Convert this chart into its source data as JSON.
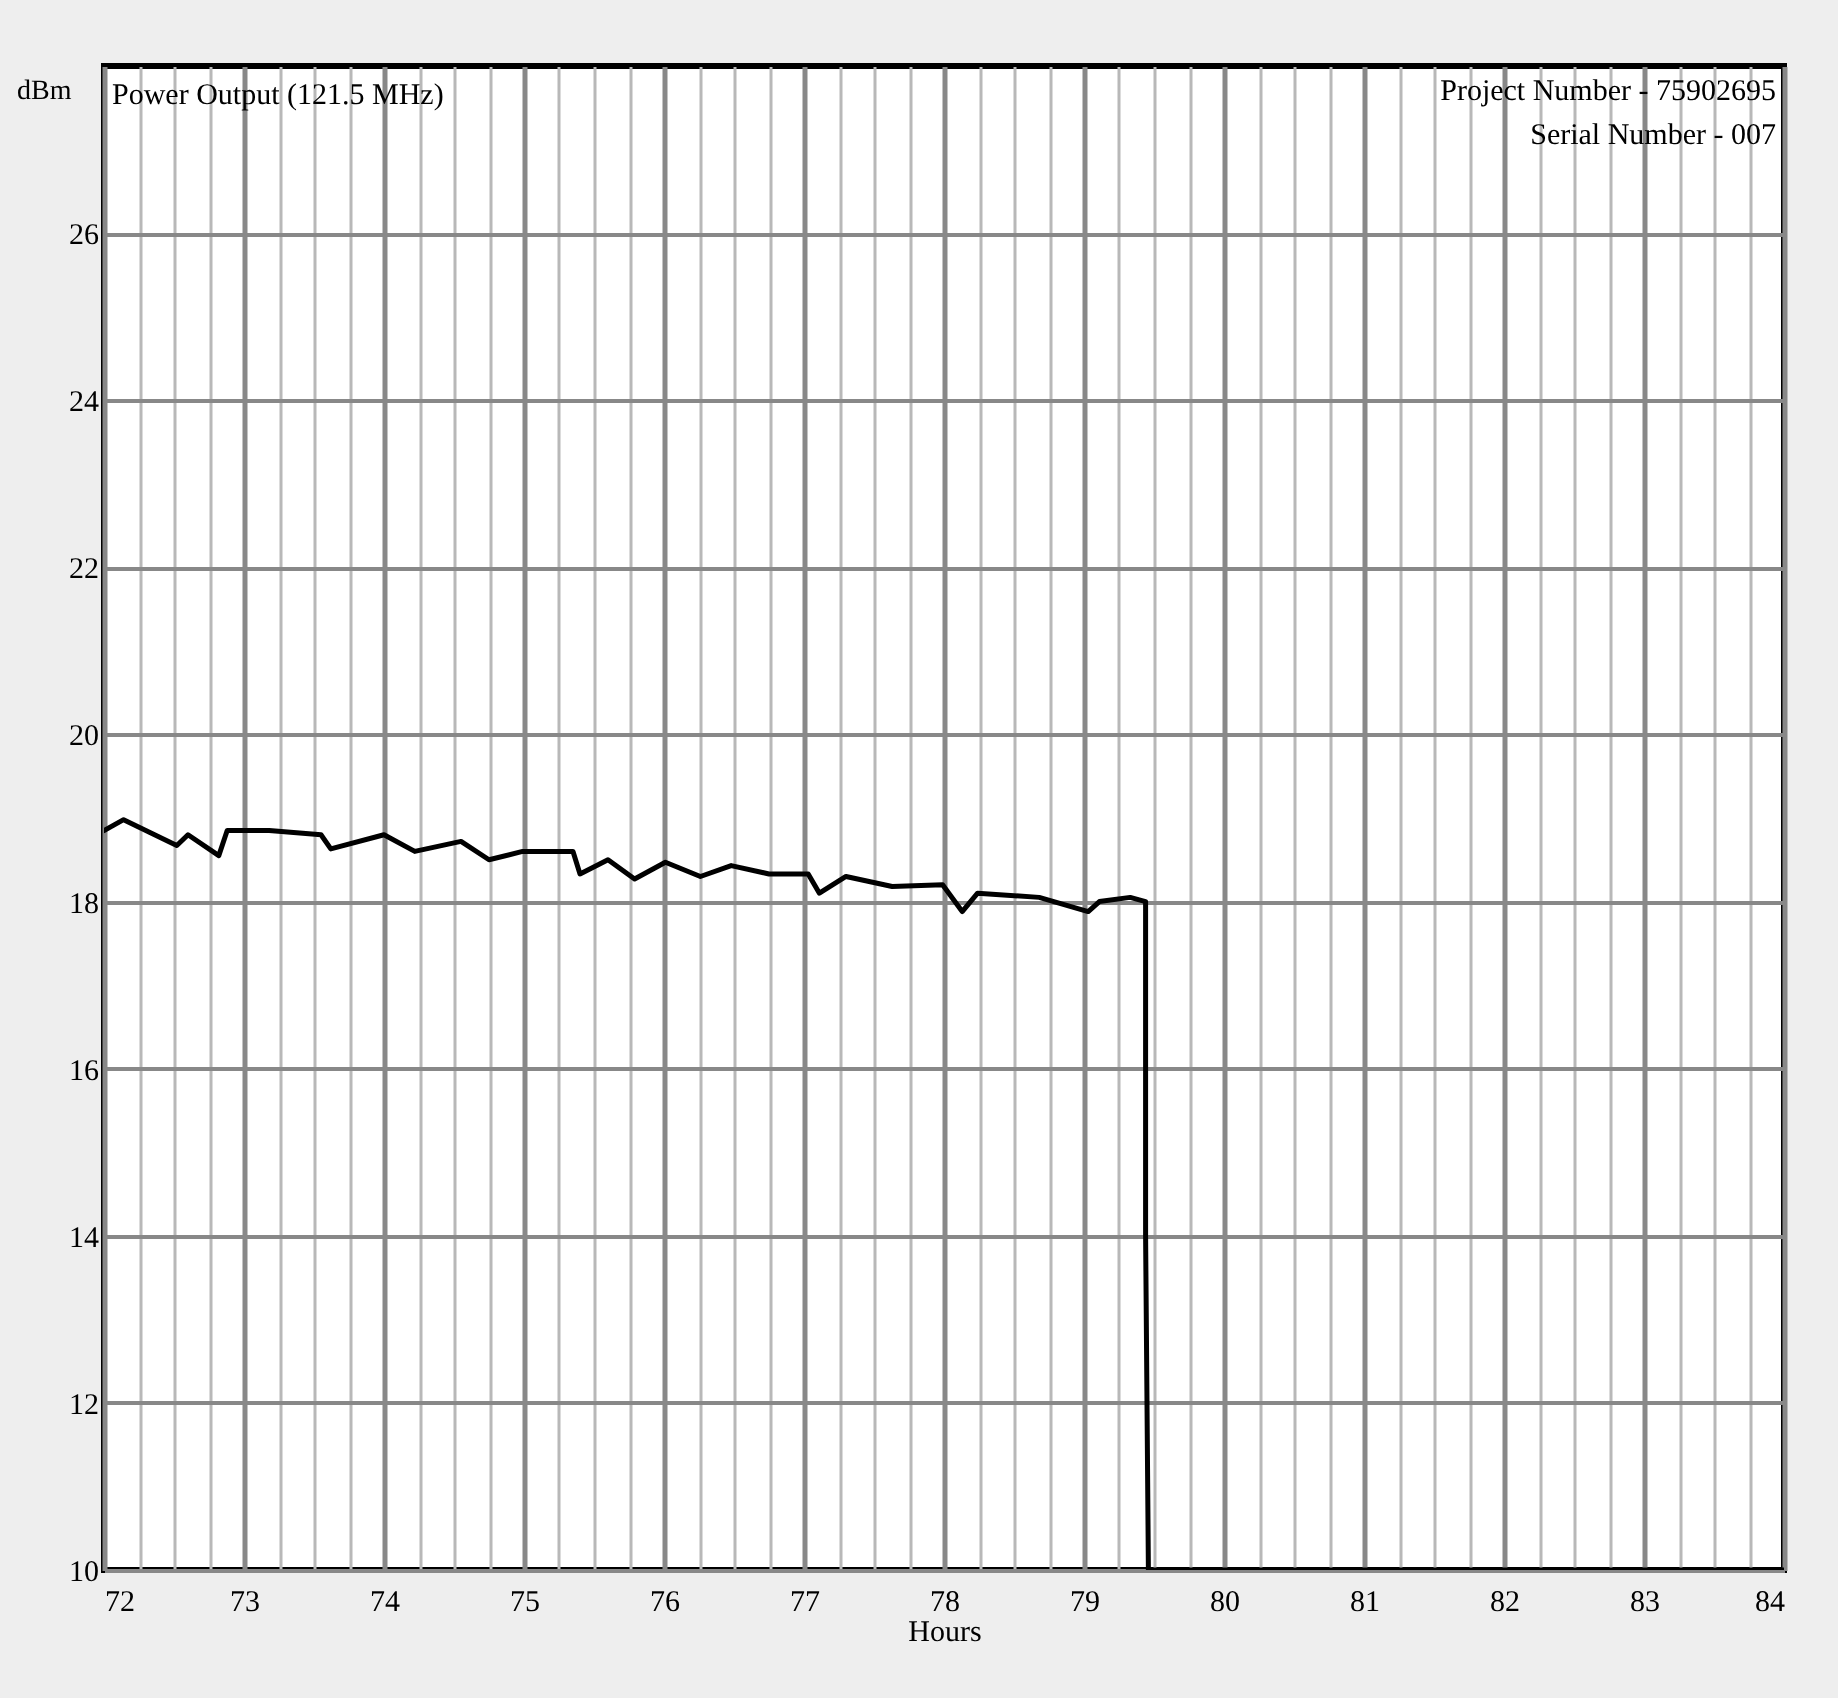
{
  "chart_data": {
    "type": "line",
    "title": "Power Output (121.5 MHz)",
    "xlabel": "Hours",
    "ylabel": "dBm",
    "annotations": [
      "Project Number - 75902695",
      "Serial Number - 007"
    ],
    "x": [
      72.0,
      72.14,
      72.52,
      72.6,
      72.82,
      72.88,
      73.18,
      73.55,
      73.62,
      74.0,
      74.22,
      74.55,
      74.75,
      74.99,
      75.35,
      75.4,
      75.6,
      75.79,
      76.01,
      76.26,
      76.48,
      76.75,
      77.03,
      77.11,
      77.3,
      77.63,
      77.99,
      78.13,
      78.24,
      78.68,
      79.03,
      79.11,
      79.33,
      79.44,
      79.44,
      79.46,
      84.0
    ],
    "values": [
      18.85,
      18.98,
      18.67,
      18.8,
      18.55,
      18.85,
      18.85,
      18.8,
      18.63,
      18.8,
      18.6,
      18.72,
      18.5,
      18.6,
      18.6,
      18.33,
      18.5,
      18.27,
      18.47,
      18.3,
      18.43,
      18.33,
      18.33,
      18.1,
      18.3,
      18.18,
      18.2,
      17.88,
      18.1,
      18.05,
      17.88,
      18.0,
      18.05,
      18.0,
      14.0,
      10,
      10
    ],
    "color": "#000000",
    "xlim": [
      72,
      84
    ],
    "ylim": [
      10,
      28
    ],
    "xticks": [
      72,
      {
        "value": 72.25,
        "label": null
      },
      {
        "value": 72.5,
        "label": null
      },
      {
        "value": 72.75,
        "label": null
      },
      73,
      {
        "value": 73.25,
        "label": null
      },
      {
        "value": 73.5,
        "label": null
      },
      {
        "value": 73.75,
        "label": null
      },
      74,
      {
        "value": 74.25,
        "label": null
      },
      {
        "value": 74.5,
        "label": null
      },
      {
        "value": 74.75,
        "label": null
      },
      75,
      {
        "value": 75.25,
        "label": null
      },
      {
        "value": 75.5,
        "label": null
      },
      {
        "value": 75.75,
        "label": null
      },
      76,
      {
        "value": 76.25,
        "label": null
      },
      {
        "value": 76.5,
        "label": null
      },
      {
        "value": 76.75,
        "label": null
      },
      77,
      {
        "value": 77.25,
        "label": null
      },
      {
        "value": 77.5,
        "label": null
      },
      {
        "value": 77.75,
        "label": null
      },
      78,
      {
        "value": 78.25,
        "label": null
      },
      {
        "value": 78.5,
        "label": null
      },
      {
        "value": 78.75,
        "label": null
      },
      79,
      {
        "value": 79.25,
        "label": null
      },
      {
        "value": 79.5,
        "label": null
      },
      {
        "value": 79.75,
        "label": null
      },
      80,
      {
        "value": 80.25,
        "label": null
      },
      {
        "value": 80.5,
        "label": null
      },
      {
        "value": 80.75,
        "label": null
      },
      81,
      {
        "value": 81.25,
        "label": null
      },
      {
        "value": 81.5,
        "label": null
      },
      {
        "value": 81.75,
        "label": null
      },
      82,
      {
        "value": 82.25,
        "label": null
      },
      {
        "value": 82.5,
        "label": null
      },
      {
        "value": 82.75,
        "label": null
      },
      83,
      {
        "value": 83.25,
        "label": null
      },
      {
        "value": 83.5,
        "label": null
      },
      {
        "value": 83.75,
        "label": null
      },
      84
    ],
    "yticks": [
      10,
      12,
      14,
      16,
      18,
      20,
      22,
      24,
      26
    ],
    "grid": true
  }
}
